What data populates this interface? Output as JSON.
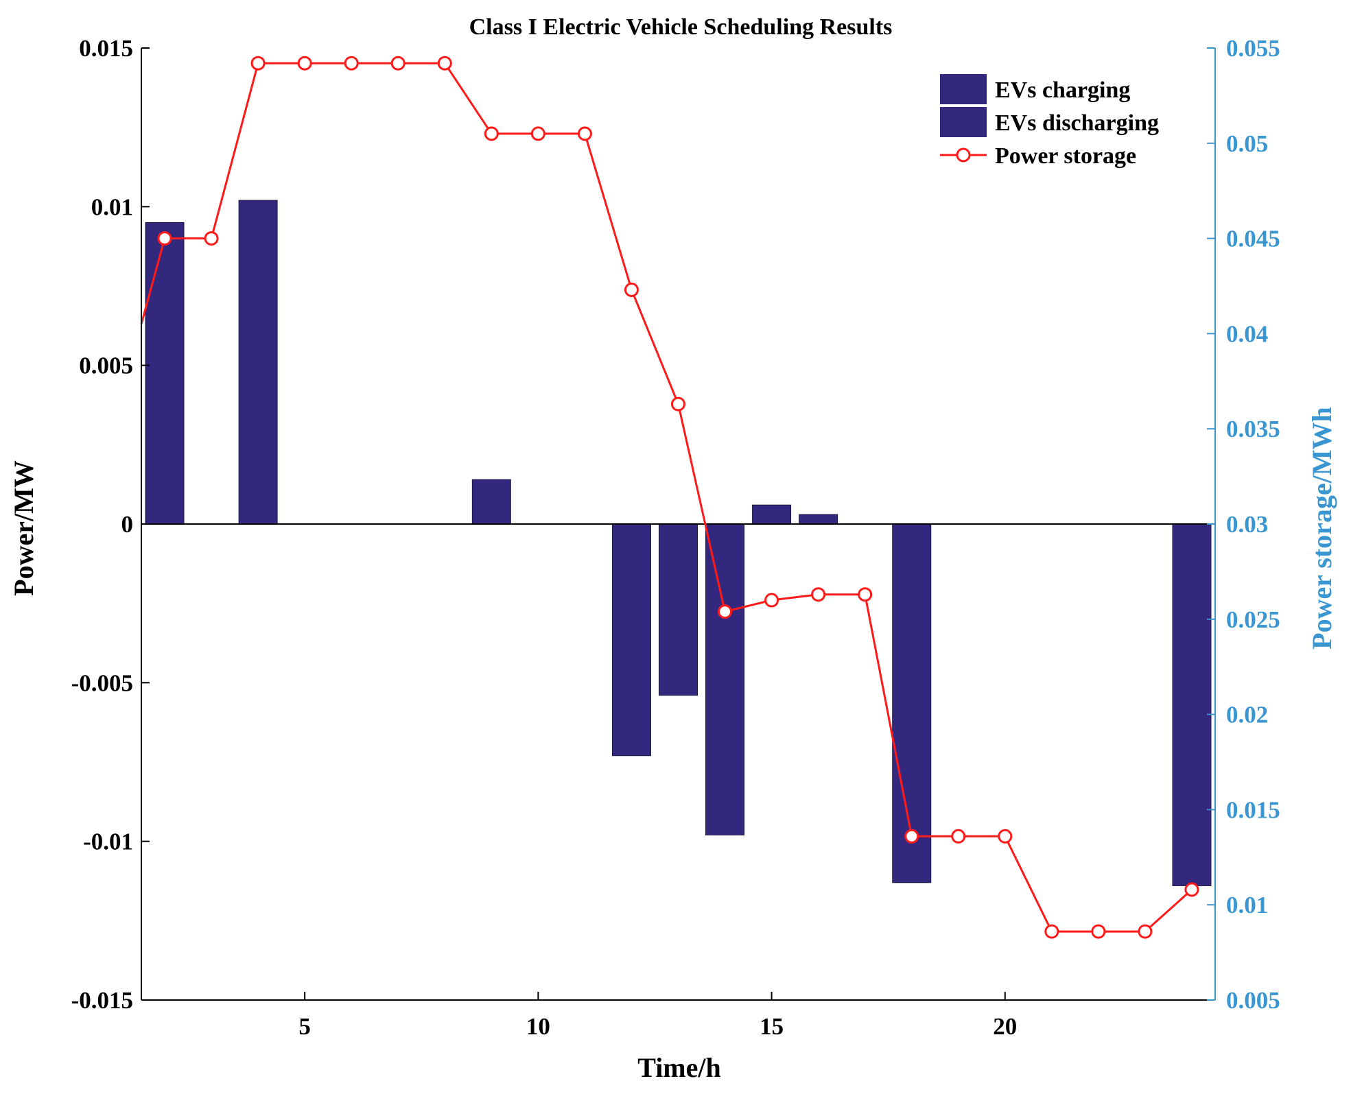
{
  "chart_data": {
    "type": "bar",
    "title": "Class I Electric Vehicle Scheduling Results",
    "xlabel": "Time/h",
    "ylabel": "Power/MW",
    "y2label": "Power storage/MWh",
    "xlim": [
      1.5,
      24.5
    ],
    "ylim": [
      -0.015,
      0.015
    ],
    "y2lim": [
      0.005,
      0.055
    ],
    "x_ticks": [
      5,
      10,
      15,
      20
    ],
    "x_tick_labels": [
      "5",
      "10",
      "15",
      "20"
    ],
    "y_ticks": [
      -0.015,
      -0.01,
      -0.005,
      0,
      0.005,
      0.01,
      0.015
    ],
    "y_tick_labels": [
      "-0.015",
      "-0.01",
      "-0.005",
      "0",
      "0.005",
      "0.01",
      "0.015"
    ],
    "y2_ticks": [
      0.005,
      0.01,
      0.015,
      0.02,
      0.025,
      0.03,
      0.035,
      0.04,
      0.045,
      0.05,
      0.055
    ],
    "y2_tick_labels": [
      "0.005",
      "0.01",
      "0.015",
      "0.02",
      "0.025",
      "0.03",
      "0.035",
      "0.04",
      "0.045",
      "0.05",
      "0.055"
    ],
    "legend_position": "top-right",
    "x": [
      2,
      3,
      4,
      5,
      6,
      7,
      8,
      9,
      10,
      11,
      12,
      13,
      14,
      15,
      16,
      17,
      18,
      19,
      20,
      21,
      22,
      23,
      24
    ],
    "series": [
      {
        "name": "EVs charging",
        "kind": "bar",
        "axis": "left",
        "color": "#32297f",
        "values": [
          0.0095,
          0,
          0.0102,
          0,
          0,
          0,
          0,
          0.0014,
          0,
          0,
          0,
          0,
          0,
          0.0006,
          0.0003,
          0,
          0,
          0,
          0,
          0,
          0,
          0,
          0
        ]
      },
      {
        "name": "EVs discharging",
        "kind": "bar",
        "axis": "left",
        "color": "#32297f",
        "values": [
          0,
          0,
          0,
          0,
          0,
          0,
          0,
          0,
          0,
          0,
          -0.0073,
          -0.0054,
          -0.0098,
          0,
          0,
          0,
          -0.0113,
          0,
          0,
          0,
          0,
          0,
          -0.0114
        ]
      },
      {
        "name": "Power storage",
        "kind": "line",
        "axis": "right",
        "color": "#ff1a1a",
        "line_start_value": 0.0405,
        "values": [
          0.045,
          0.045,
          0.0542,
          0.0542,
          0.0542,
          0.0542,
          0.0542,
          0.0505,
          0.0505,
          0.0505,
          0.0423,
          0.0363,
          0.0254,
          0.026,
          0.0263,
          0.0263,
          0.0136,
          0.0136,
          0.0136,
          0.0086,
          0.0086,
          0.0086,
          0.0108
        ]
      }
    ]
  },
  "colors": {
    "right_axis": "#3a96d0",
    "axis": "#000000",
    "bar": "#32297f",
    "line": "#ff1a1a"
  }
}
